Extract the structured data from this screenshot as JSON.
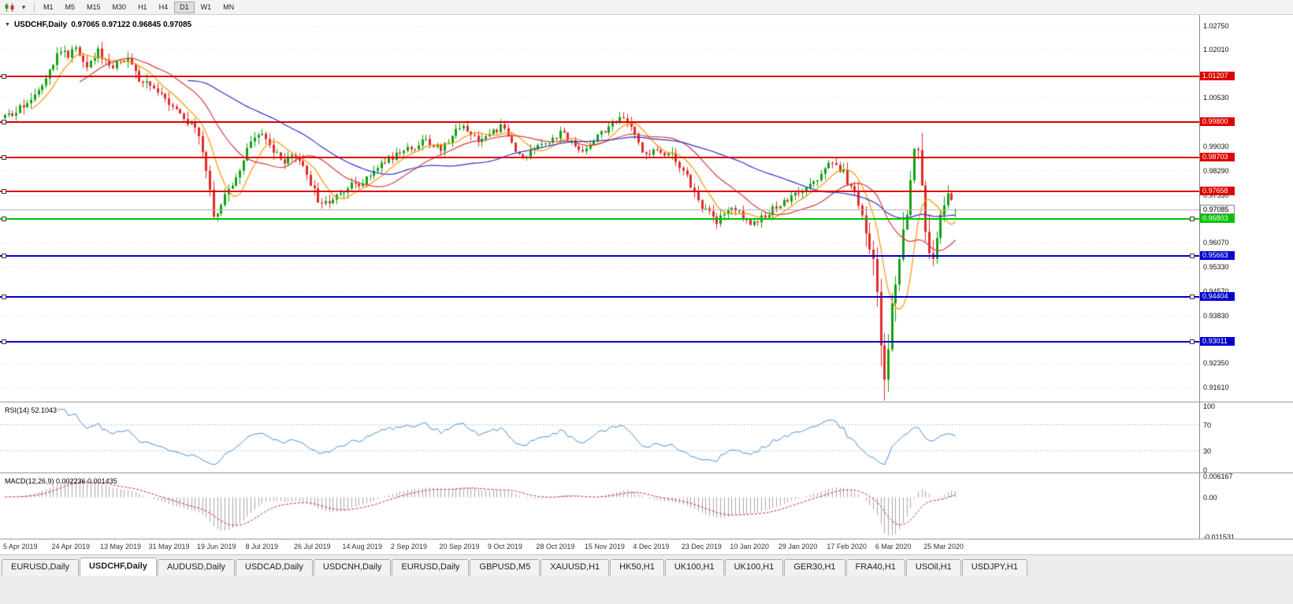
{
  "toolbar": {
    "timeframes": [
      "M1",
      "M5",
      "M15",
      "M30",
      "H1",
      "H4",
      "D1",
      "W1",
      "MN"
    ],
    "active_timeframe": "D1"
  },
  "chart": {
    "title": "USDCHF,Daily",
    "ohlc_text": "0.97065 0.97122 0.96845 0.97085"
  },
  "rsi": {
    "title": "RSI(14) 52.1043",
    "value": 52.1043,
    "color": "#4a8fd4",
    "levels": [
      70,
      30
    ],
    "axis_labels": [
      {
        "label": "100",
        "value": 100
      },
      {
        "label": "70",
        "value": 70
      },
      {
        "label": "30",
        "value": 30
      },
      {
        "label": "0",
        "value": 0
      }
    ]
  },
  "macd": {
    "title": "MACD(12,26,9) 0.002236 0.001435",
    "value": 0.002236,
    "signal": 0.001435,
    "bar_color": "#a8a8a8",
    "signal_color": "#d22b2b",
    "axis_labels": [
      {
        "label": "0.006167",
        "value": 0.006167
      },
      {
        "label": "0.00",
        "value": 0
      },
      {
        "label": "-0.011531",
        "value": -0.011531
      }
    ]
  },
  "tabs": {
    "items": [
      "EURUSD,Daily",
      "USDCHF,Daily",
      "AUDUSD,Daily",
      "USDCAD,Daily",
      "USDCNH,Daily",
      "EURUSD,Daily",
      "GBPUSD,M5",
      "XAUUSD,H1",
      "HK50,H1",
      "UK100,H1",
      "UK100,H1",
      "GER30,H1",
      "FRA40,H1",
      "USOil,H1",
      "USDJPY,H1"
    ],
    "active_index": 1
  },
  "chart_data": {
    "type": "candlestick",
    "symbol": "USDCHF",
    "period": "Daily",
    "open": 0.97065,
    "high": 0.97122,
    "low": 0.96845,
    "close": 0.97085,
    "bar_count": 256,
    "bars_per_x_label": 13,
    "x_labels": [
      "5 Apr 2019",
      "24 Apr 2019",
      "13 May 2019",
      "31 May 2019",
      "19 Jun 2019",
      "8 Jul 2019",
      "26 Jul 2019",
      "14 Aug 2019",
      "2 Sep 2019",
      "20 Sep 2019",
      "9 Oct 2019",
      "28 Oct 2019",
      "15 Nov 2019",
      "4 Dec 2019",
      "23 Dec 2019",
      "10 Jan 2020",
      "29 Jan 2020",
      "17 Feb 2020",
      "6 Mar 2020",
      "25 Mar 2020"
    ],
    "y_ticks": [
      {
        "label": "1.02750",
        "price": 1.0275
      },
      {
        "label": "1.02010",
        "price": 1.0201
      },
      {
        "label": "1.00530",
        "price": 1.0053
      },
      {
        "label": "0.99030",
        "price": 0.9903
      },
      {
        "label": "0.98290",
        "price": 0.9829
      },
      {
        "label": "0.97530",
        "price": 0.9753
      },
      {
        "label": "0.96070",
        "price": 0.9607
      },
      {
        "label": "0.95330",
        "price": 0.9533
      },
      {
        "label": "0.94570",
        "price": 0.9457
      },
      {
        "label": "0.93830",
        "price": 0.9383
      },
      {
        "label": "0.92350",
        "price": 0.9235
      },
      {
        "label": "0.91610",
        "price": 0.9161
      }
    ],
    "current_price": {
      "label": "0.97085",
      "price": 0.97085
    },
    "levels": [
      {
        "label": "1.01207",
        "price": 1.01207,
        "color": "#dd0000",
        "kind": "resistance"
      },
      {
        "label": "0.99800",
        "price": 0.998,
        "color": "#dd0000",
        "kind": "resistance"
      },
      {
        "label": "0.98703",
        "price": 0.98703,
        "color": "#dd0000",
        "kind": "resistance"
      },
      {
        "label": "0.97658",
        "price": 0.97658,
        "color": "#dd0000",
        "kind": "resistance"
      },
      {
        "label": "0.96803",
        "price": 0.96803,
        "color": "#00c400",
        "kind": "support"
      },
      {
        "label": "0.95663",
        "price": 0.95663,
        "color": "#0000cc",
        "kind": "support"
      },
      {
        "label": "0.94404",
        "price": 0.94404,
        "color": "#0000cc",
        "kind": "support"
      },
      {
        "label": "0.93011",
        "price": 0.93011,
        "color": "#0000cc",
        "kind": "support"
      }
    ],
    "moving_averages": [
      {
        "period": 8,
        "color": "#ff9500"
      },
      {
        "period": 21,
        "color": "#d43a3a"
      },
      {
        "period": 50,
        "color": "#3030c8"
      }
    ],
    "candle_up_color": "#12a112",
    "candle_down_color": "#e22a2a",
    "grid_color": "#e3e3e3",
    "price_path": [
      [
        0,
        0.999
      ],
      [
        3,
        1.0005
      ],
      [
        6,
        1.0045
      ],
      [
        9,
        1.008
      ],
      [
        12,
        1.015
      ],
      [
        15,
        1.02
      ],
      [
        17,
        1.0185
      ],
      [
        19,
        1.0205
      ],
      [
        22,
        1.016
      ],
      [
        25,
        1.0195
      ],
      [
        28,
        1.015
      ],
      [
        31,
        1.0172
      ],
      [
        34,
        1.0165
      ],
      [
        36,
        1.011
      ],
      [
        39,
        1.0088
      ],
      [
        42,
        1.0072
      ],
      [
        45,
        1.0032
      ],
      [
        48,
        0.9992
      ],
      [
        51,
        0.9952
      ],
      [
        53,
        0.9892
      ],
      [
        55,
        0.9762
      ],
      [
        56,
        0.9692
      ],
      [
        57,
        0.9688
      ],
      [
        59,
        0.9756
      ],
      [
        61,
        0.9792
      ],
      [
        63,
        0.9842
      ],
      [
        65,
        0.9892
      ],
      [
        67,
        0.9922
      ],
      [
        69,
        0.9936
      ],
      [
        71,
        0.9906
      ],
      [
        73,
        0.9872
      ],
      [
        75,
        0.9852
      ],
      [
        77,
        0.9866
      ],
      [
        79,
        0.9856
      ],
      [
        81,
        0.9822
      ],
      [
        83,
        0.9762
      ],
      [
        85,
        0.9716
      ],
      [
        88,
        0.9746
      ],
      [
        90,
        0.9766
      ],
      [
        92,
        0.9776
      ],
      [
        95,
        0.9792
      ],
      [
        98,
        0.9812
      ],
      [
        101,
        0.9856
      ],
      [
        104,
        0.9872
      ],
      [
        107,
        0.9886
      ],
      [
        110,
        0.9906
      ],
      [
        113,
        0.9922
      ],
      [
        115,
        0.9906
      ],
      [
        117,
        0.9896
      ],
      [
        119,
        0.9922
      ],
      [
        121,
        0.9956
      ],
      [
        123,
        0.9972
      ],
      [
        125,
        0.9942
      ],
      [
        127,
        0.9926
      ],
      [
        129,
        0.9932
      ],
      [
        131,
        0.9946
      ],
      [
        133,
        0.9966
      ],
      [
        135,
        0.9936
      ],
      [
        137,
        0.9892
      ],
      [
        139,
        0.9872
      ],
      [
        141,
        0.9886
      ],
      [
        143,
        0.9902
      ],
      [
        145,
        0.9916
      ],
      [
        147,
        0.9932
      ],
      [
        149,
        0.9942
      ],
      [
        151,
        0.9932
      ],
      [
        153,
        0.9906
      ],
      [
        155,
        0.9892
      ],
      [
        157,
        0.9912
      ],
      [
        159,
        0.9936
      ],
      [
        161,
        0.9956
      ],
      [
        163,
        0.9976
      ],
      [
        165,
        0.9986
      ],
      [
        167,
        0.9976
      ],
      [
        169,
        0.9936
      ],
      [
        171,
        0.9892
      ],
      [
        173,
        0.9882
      ],
      [
        175,
        0.9892
      ],
      [
        177,
        0.9886
      ],
      [
        179,
        0.9872
      ],
      [
        181,
        0.9842
      ],
      [
        183,
        0.9806
      ],
      [
        185,
        0.9762
      ],
      [
        187,
        0.9722
      ],
      [
        189,
        0.9692
      ],
      [
        191,
        0.9672
      ],
      [
        193,
        0.9696
      ],
      [
        195,
        0.9722
      ],
      [
        197,
        0.9702
      ],
      [
        199,
        0.9676
      ],
      [
        201,
        0.9666
      ],
      [
        203,
        0.9682
      ],
      [
        205,
        0.9702
      ],
      [
        207,
        0.9722
      ],
      [
        209,
        0.9732
      ],
      [
        211,
        0.9746
      ],
      [
        213,
        0.9756
      ],
      [
        215,
        0.9772
      ],
      [
        217,
        0.9792
      ],
      [
        219,
        0.9816
      ],
      [
        221,
        0.9842
      ],
      [
        223,
        0.9852
      ],
      [
        225,
        0.9822
      ],
      [
        227,
        0.9782
      ],
      [
        229,
        0.9722
      ],
      [
        230,
        0.9682
      ],
      [
        231,
        0.9642
      ],
      [
        232,
        0.9602
      ],
      [
        233,
        0.9562
      ],
      [
        234,
        0.9482
      ],
      [
        235,
        0.9302
      ],
      [
        236,
        0.9202
      ],
      [
        237,
        0.9292
      ],
      [
        238,
        0.9422
      ],
      [
        239,
        0.9512
      ],
      [
        240,
        0.9552
      ],
      [
        241,
        0.9622
      ],
      [
        242,
        0.9702
      ],
      [
        243,
        0.9812
      ],
      [
        244,
        0.9902
      ],
      [
        245,
        0.9872
      ],
      [
        246,
        0.9772
      ],
      [
        247,
        0.9652
      ],
      [
        248,
        0.9562
      ],
      [
        249,
        0.9532
      ],
      [
        250,
        0.9602
      ],
      [
        251,
        0.9682
      ],
      [
        252,
        0.9742
      ],
      [
        253,
        0.9772
      ],
      [
        254,
        0.9732
      ],
      [
        255,
        0.9708
      ]
    ],
    "volatility_path": [
      [
        0,
        0.0042
      ],
      [
        20,
        0.0048
      ],
      [
        50,
        0.0046
      ],
      [
        54,
        0.0068
      ],
      [
        58,
        0.0055
      ],
      [
        80,
        0.0045
      ],
      [
        100,
        0.0038
      ],
      [
        130,
        0.0034
      ],
      [
        160,
        0.0034
      ],
      [
        185,
        0.0042
      ],
      [
        210,
        0.0034
      ],
      [
        225,
        0.0046
      ],
      [
        230,
        0.0078
      ],
      [
        233,
        0.011
      ],
      [
        236,
        0.0145
      ],
      [
        240,
        0.011
      ],
      [
        244,
        0.012
      ],
      [
        248,
        0.011
      ],
      [
        252,
        0.008
      ],
      [
        255,
        0.005
      ]
    ]
  }
}
